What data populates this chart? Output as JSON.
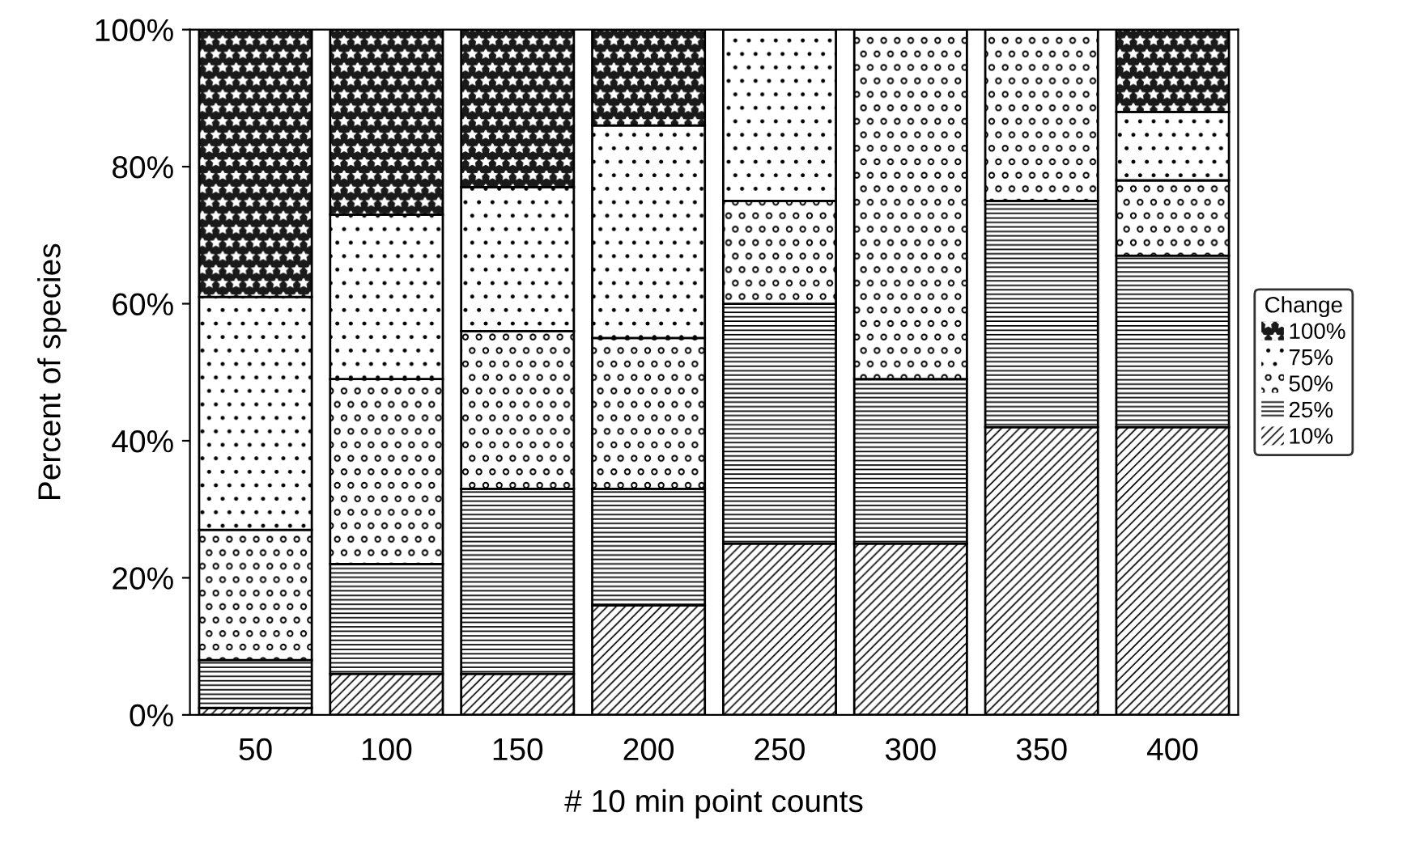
{
  "chart_data": {
    "type": "bar",
    "stacked": true,
    "xlabel": "# 10 min point counts",
    "ylabel": "Percent of species",
    "legend_title": "Change",
    "legend": "right",
    "categories": [
      "50",
      "100",
      "150",
      "200",
      "250",
      "300",
      "350",
      "400"
    ],
    "series": [
      {
        "name": "10%",
        "color": "#ffffff",
        "values": [
          1,
          6,
          6,
          16,
          25,
          25,
          42,
          42
        ]
      },
      {
        "name": "25%",
        "color": "#ffffff",
        "values": [
          7,
          16,
          27,
          17,
          35,
          24,
          33,
          25
        ]
      },
      {
        "name": "50%",
        "color": "#ffffff",
        "values": [
          19,
          27,
          23,
          22,
          15,
          51,
          25,
          11
        ]
      },
      {
        "name": "75%",
        "color": "#ffffff",
        "values": [
          34,
          24,
          21,
          31,
          25,
          0,
          0,
          10
        ]
      },
      {
        "name": "100%",
        "color": "#1a1a1a",
        "values": [
          39,
          27,
          23,
          14,
          0,
          0,
          0,
          12
        ]
      }
    ],
    "ylim": [
      0,
      100
    ],
    "yticks": [
      {
        "value": 0,
        "label": "0%"
      },
      {
        "value": 20,
        "label": "20%"
      },
      {
        "value": 40,
        "label": "40%"
      },
      {
        "value": 60,
        "label": "60%"
      },
      {
        "value": 80,
        "label": "80%"
      },
      {
        "value": 100,
        "label": "100%"
      }
    ],
    "grid": false
  }
}
